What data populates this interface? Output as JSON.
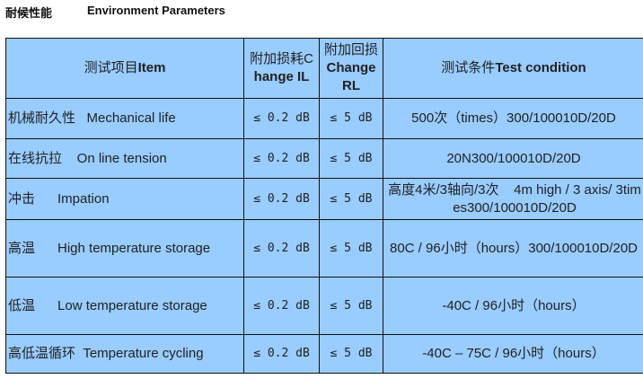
{
  "title": {
    "zh": "耐候性能",
    "en": "Environment Parameters"
  },
  "table": {
    "headers": [
      {
        "zh": "测试项目",
        "en": "Item"
      },
      {
        "zh": "附加损耗C",
        "en": "hange IL"
      },
      {
        "zh": "附加回损",
        "en": "Change RL"
      },
      {
        "zh": "测试条件",
        "en": "Test condition"
      }
    ],
    "rows": [
      {
        "item": "机械耐久性   Mechanical life",
        "il": "≤ 0.2 dB",
        "rl": "≤ 5 dB",
        "condition": "500次（times）300/100010D/20D"
      },
      {
        "item": "在线抗拉    On line tension",
        "il": "≤ 0.2 dB",
        "rl": "≤ 5 dB",
        "condition": "20N300/100010D/20D"
      },
      {
        "item": "冲击      Impation",
        "il": "≤ 0.2 dB",
        "rl": "≤ 5 dB",
        "condition": "高度4米/3轴向/3次    4m high / 3 axis/ 3times300/100010D/20D"
      },
      {
        "item": "高温      High temperature storage",
        "il": "≤ 0.2 dB",
        "rl": "≤ 5 dB",
        "condition": "80C / 96小时（hours）300/100010D/20D"
      },
      {
        "item": "低温      Low temperature storage",
        "il": "≤ 0.2 dB",
        "rl": "≤ 5 dB",
        "condition": "-40C / 96小时（hours）"
      },
      {
        "item": "高低温循环  Temperature cycling",
        "il": "≤ 0.2 dB",
        "rl": "≤ 5 dB",
        "condition": "-40C – 75C / 96小时（hours）"
      }
    ]
  },
  "colors": {
    "table_bg": "#99ccff",
    "border": "#111111"
  }
}
